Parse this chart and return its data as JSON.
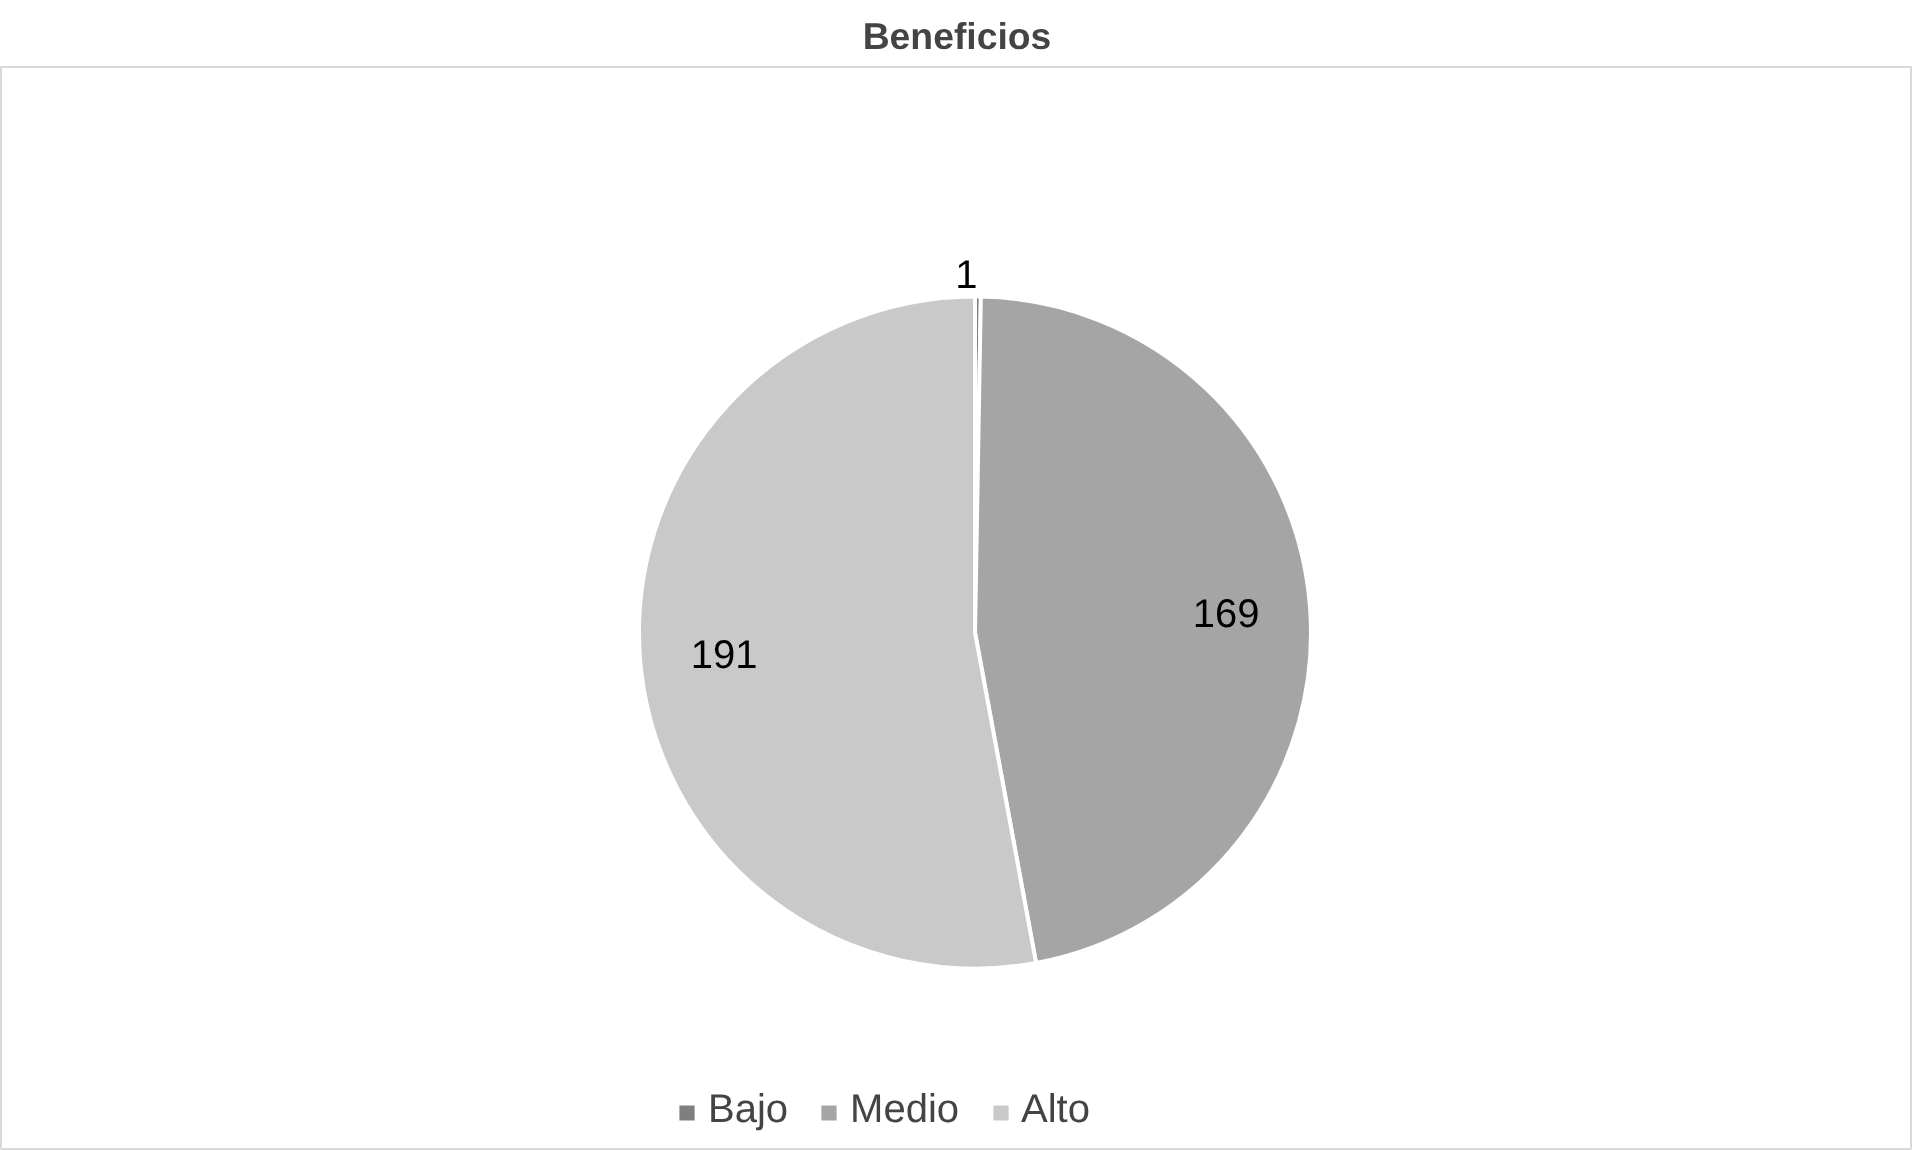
{
  "chart_data": {
    "type": "pie",
    "title": "Beneficios",
    "categories": [
      "Bajo",
      "Medio",
      "Alto"
    ],
    "values": [
      1,
      169,
      191
    ],
    "colors": [
      "#7f7f7f",
      "#a5a5a5",
      "#c9c9c9"
    ],
    "data_labels": true,
    "legend": "bottom"
  }
}
